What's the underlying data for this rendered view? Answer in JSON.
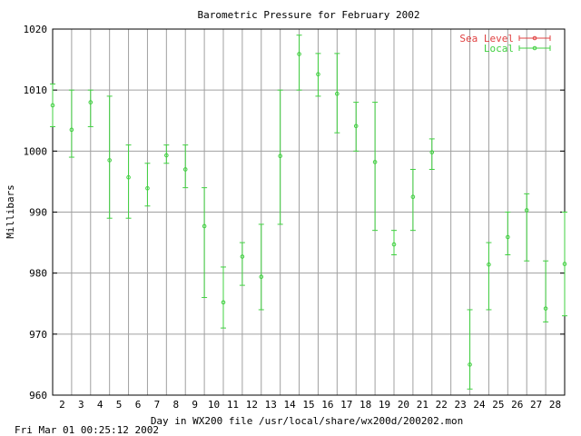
{
  "chart_data": {
    "type": "scatter",
    "title": "Barometric Pressure for February 2002",
    "xlabel": "Day in WX200 file /usr/local/share/wx200d/200202.mon",
    "ylabel": "Millibars",
    "footer_timestamp": "Fri Mar 01 00:25:12 2002",
    "xlim": [
      1.5,
      28.5
    ],
    "ylim": [
      960,
      1020
    ],
    "x_ticks": [
      2,
      3,
      4,
      5,
      6,
      7,
      8,
      9,
      10,
      11,
      12,
      13,
      14,
      15,
      16,
      17,
      18,
      19,
      20,
      21,
      22,
      23,
      24,
      25,
      26,
      27,
      28
    ],
    "y_ticks": [
      960,
      970,
      980,
      990,
      1000,
      1010,
      1020
    ],
    "grid": true,
    "legend_position": "top-right",
    "colors": {
      "sea_level": "#e04040",
      "local": "#40d040",
      "grid": "#a0a0a0"
    },
    "series": [
      {
        "name": "Sea Level",
        "values": []
      },
      {
        "name": "Local",
        "points": [
          {
            "x": 1.5,
            "mean": 1007.5,
            "low": 1004.0,
            "high": 1011.0
          },
          {
            "x": 2.5,
            "mean": 1003.5,
            "low": 999.0,
            "high": 1010.0
          },
          {
            "x": 3.5,
            "mean": 1008.0,
            "low": 1004.0,
            "high": 1010.0
          },
          {
            "x": 4.5,
            "mean": 998.5,
            "low": 989.0,
            "high": 1009.0
          },
          {
            "x": 5.5,
            "mean": 995.7,
            "low": 989.0,
            "high": 1001.0
          },
          {
            "x": 6.5,
            "mean": 993.9,
            "low": 991.0,
            "high": 998.0
          },
          {
            "x": 7.5,
            "mean": 999.3,
            "low": 998.0,
            "high": 1001.0
          },
          {
            "x": 8.5,
            "mean": 997.0,
            "low": 994.0,
            "high": 1001.0
          },
          {
            "x": 9.5,
            "mean": 987.7,
            "low": 976.0,
            "high": 994.0
          },
          {
            "x": 10.5,
            "mean": 975.2,
            "low": 971.0,
            "high": 981.0
          },
          {
            "x": 11.5,
            "mean": 982.7,
            "low": 978.0,
            "high": 985.0
          },
          {
            "x": 12.5,
            "mean": 979.4,
            "low": 974.0,
            "high": 988.0
          },
          {
            "x": 13.5,
            "mean": 999.2,
            "low": 988.0,
            "high": 1010.0
          },
          {
            "x": 14.5,
            "mean": 1015.9,
            "low": 1010.0,
            "high": 1019.0
          },
          {
            "x": 15.5,
            "mean": 1012.6,
            "low": 1009.0,
            "high": 1016.0
          },
          {
            "x": 16.5,
            "mean": 1009.4,
            "low": 1003.0,
            "high": 1016.0
          },
          {
            "x": 17.5,
            "mean": 1004.1,
            "low": 1000.0,
            "high": 1008.0
          },
          {
            "x": 18.5,
            "mean": 998.2,
            "low": 987.0,
            "high": 1008.0
          },
          {
            "x": 19.5,
            "mean": 984.7,
            "low": 983.0,
            "high": 987.0
          },
          {
            "x": 20.5,
            "mean": 992.5,
            "low": 987.0,
            "high": 997.0
          },
          {
            "x": 21.5,
            "mean": 999.8,
            "low": 997.0,
            "high": 1002.0
          },
          {
            "x": 23.5,
            "mean": 965.0,
            "low": 961.0,
            "high": 974.0
          },
          {
            "x": 24.5,
            "mean": 981.4,
            "low": 974.0,
            "high": 985.0
          },
          {
            "x": 25.5,
            "mean": 985.9,
            "low": 983.0,
            "high": 990.0
          },
          {
            "x": 26.5,
            "mean": 990.3,
            "low": 982.0,
            "high": 993.0
          },
          {
            "x": 27.5,
            "mean": 974.2,
            "low": 972.0,
            "high": 982.0
          },
          {
            "x": 28.5,
            "mean": 981.5,
            "low": 973.0,
            "high": 990.0
          }
        ]
      }
    ]
  }
}
